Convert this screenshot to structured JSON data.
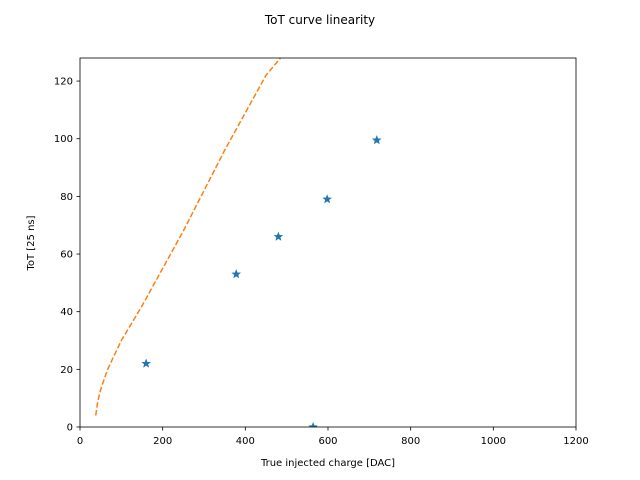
{
  "chart_data": {
    "type": "scatter",
    "title": "ToT curve linearity",
    "xlabel": "True injected charge [DAC]",
    "ylabel": "ToT [25 ns]",
    "xlim": [
      0,
      1200
    ],
    "ylim": [
      0,
      128
    ],
    "xticks": [
      0,
      200,
      400,
      600,
      800,
      1000,
      1200
    ],
    "yticks": [
      0,
      20,
      40,
      60,
      80,
      100,
      120
    ],
    "grid": false,
    "series": [
      {
        "marker": "star",
        "color": "#1f77b4",
        "points": [
          {
            "x": 160,
            "y": 22
          },
          {
            "x": 378,
            "y": 53
          },
          {
            "x": 480,
            "y": 66
          },
          {
            "x": 564,
            "y": 0
          },
          {
            "x": 598,
            "y": 79
          },
          {
            "x": 718,
            "y": 99.5
          }
        ]
      },
      {
        "line_style": "dashed",
        "color": "#ff7f0e",
        "points": [
          {
            "x": 38,
            "y": 4
          },
          {
            "x": 42,
            "y": 8
          },
          {
            "x": 48,
            "y": 12
          },
          {
            "x": 57,
            "y": 16
          },
          {
            "x": 67,
            "y": 20
          },
          {
            "x": 80,
            "y": 24
          },
          {
            "x": 100,
            "y": 30
          },
          {
            "x": 150,
            "y": 42
          },
          {
            "x": 200,
            "y": 55
          },
          {
            "x": 250,
            "y": 68
          },
          {
            "x": 300,
            "y": 82
          },
          {
            "x": 350,
            "y": 96
          },
          {
            "x": 400,
            "y": 109
          },
          {
            "x": 450,
            "y": 122
          },
          {
            "x": 485,
            "y": 128
          }
        ]
      }
    ]
  }
}
